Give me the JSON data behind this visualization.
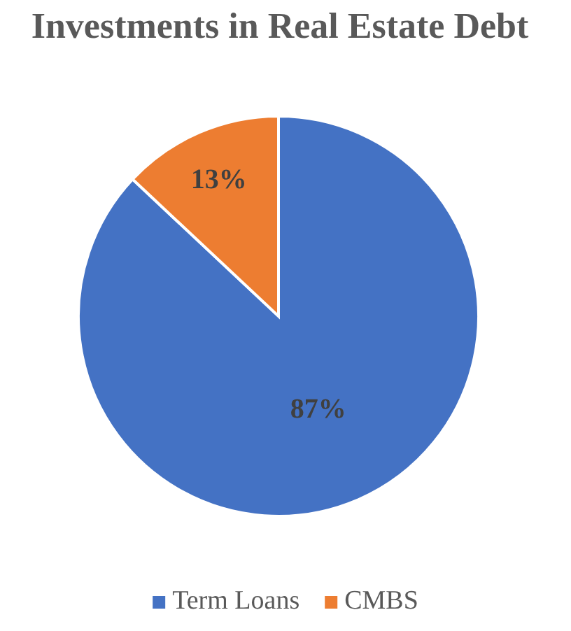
{
  "chart_data": {
    "type": "pie",
    "title": "Investments in Real Estate Debt",
    "categories": [
      "Term Loans",
      "CMBS"
    ],
    "values": [
      87,
      13
    ],
    "colors": [
      "#4472c4",
      "#ed7d31"
    ],
    "value_labels": [
      "87%",
      "13%"
    ],
    "legend": "bottom"
  }
}
